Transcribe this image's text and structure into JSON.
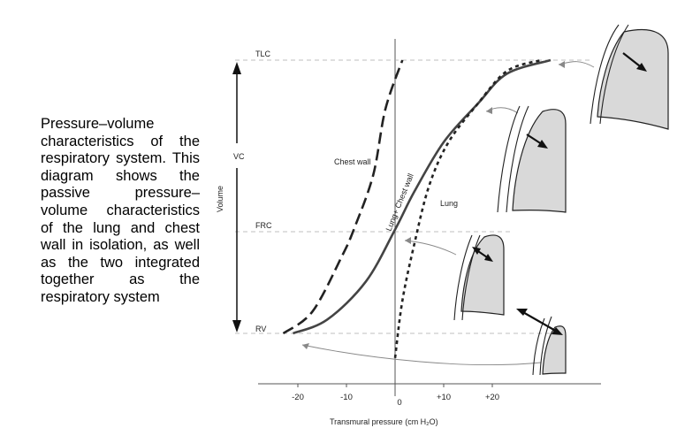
{
  "caption": "Pressure–volume characteristics of the respiratory system. This diagram shows the passive pressure–volume characteristics of the lung and chest wall in isolation, as well as the two integrated together as the respiratory system",
  "chart_data": {
    "type": "line",
    "title": "",
    "xlabel": "Transmural pressure (cm H₂O)",
    "ylabel": "Volume",
    "x_ticks": [
      "-20",
      "-10",
      "0",
      "+10",
      "+20"
    ],
    "volume_levels": [
      "TLC",
      "FRC",
      "RV"
    ],
    "vc_label": "VC",
    "series": [
      {
        "name": "Chest wall",
        "style": "long-dash",
        "points": [
          [
            -23,
            0.0
          ],
          [
            -17,
            0.08
          ],
          [
            -11,
            0.28
          ],
          [
            -8.5,
            0.38
          ],
          [
            -4.5,
            0.58
          ],
          [
            -2,
            0.82
          ],
          [
            1.5,
            1.0
          ]
        ]
      },
      {
        "name": "Lung+ Chest wall",
        "style": "solid",
        "points": [
          [
            -21,
            0.0
          ],
          [
            -14,
            0.05
          ],
          [
            -6,
            0.19
          ],
          [
            0,
            0.38
          ],
          [
            4,
            0.52
          ],
          [
            10,
            0.7
          ],
          [
            17,
            0.84
          ],
          [
            23,
            0.95
          ],
          [
            32,
            1.0
          ]
        ]
      },
      {
        "name": "Lung",
        "style": "short-dash",
        "points": [
          [
            0,
            -0.09
          ],
          [
            1.5,
            0.12
          ],
          [
            4,
            0.33
          ],
          [
            7,
            0.54
          ],
          [
            11,
            0.7
          ],
          [
            17,
            0.84
          ],
          [
            23,
            0.96
          ],
          [
            30,
            1.0
          ]
        ]
      }
    ],
    "grid": false,
    "legend": "labels on curves"
  }
}
